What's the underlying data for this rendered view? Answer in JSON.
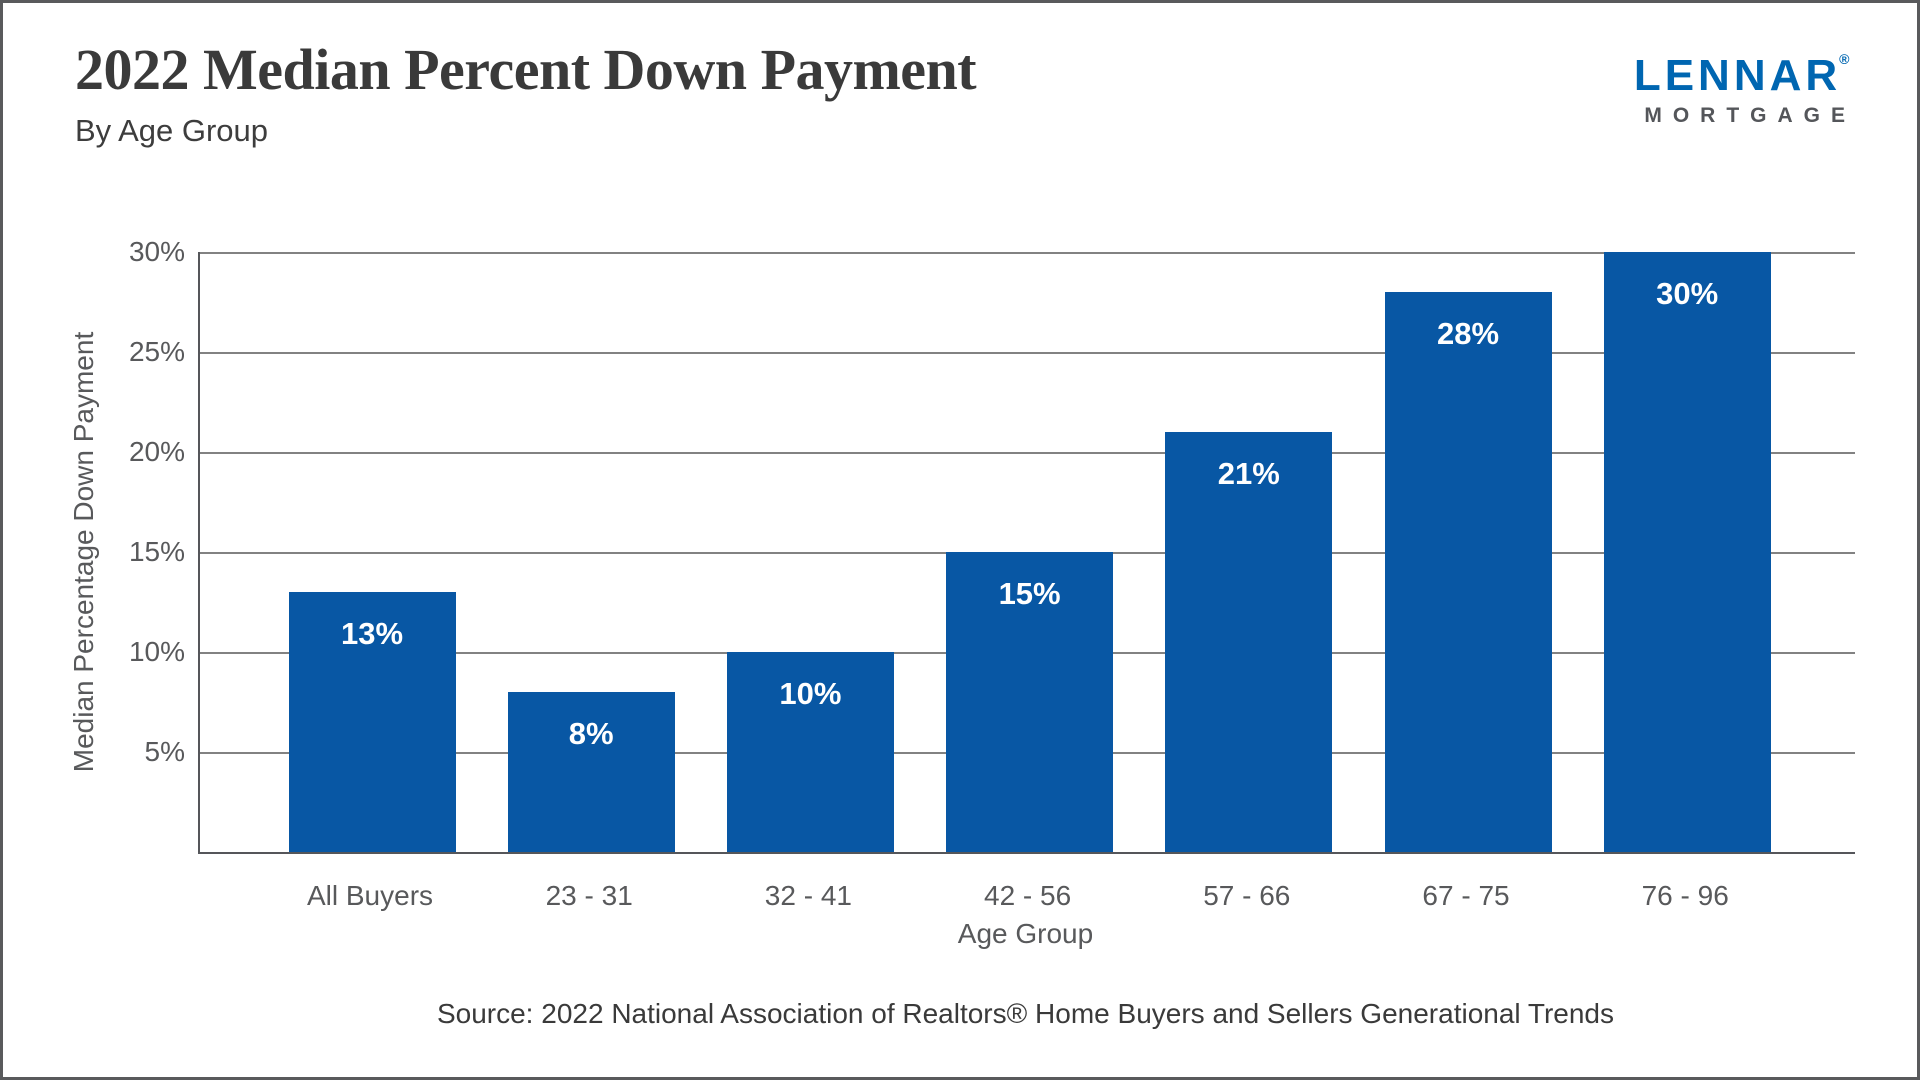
{
  "header": {
    "title": "2022 Median Percent Down Payment",
    "subtitle": "By Age Group"
  },
  "logo": {
    "brand": "LENNAR",
    "registered": "®",
    "sub_brand": "MORTGAGE",
    "brand_color": "#0066B1",
    "sub_brand_color": "#54565A"
  },
  "chart_data": {
    "type": "bar",
    "title": "2022 Median Percent Down Payment",
    "subtitle": "By Age Group",
    "categories": [
      "All Buyers",
      "23 - 31",
      "32 - 41",
      "42 - 56",
      "57 - 66",
      "67 - 75",
      "76 - 96"
    ],
    "values": [
      13,
      8,
      10,
      15,
      21,
      28,
      30
    ],
    "value_labels": [
      "13%",
      "8%",
      "10%",
      "15%",
      "21%",
      "28%",
      "30%"
    ],
    "xlabel": "Age Group",
    "ylabel": "Median Percentage Down Payment",
    "ylim": [
      0,
      30
    ],
    "yticks": [
      5,
      10,
      15,
      20,
      25,
      30
    ],
    "ytick_labels": [
      "5%",
      "10%",
      "15%",
      "20%",
      "25%",
      "30%"
    ],
    "grid": true,
    "legend": false,
    "bar_color": "#0857A4",
    "bar_label_color": "#FFFFFF",
    "axis_color": "#55565A",
    "grid_color": "#828282",
    "tick_text_color": "#58595B"
  },
  "footer": {
    "source": "Source: 2022 National Association of Realtors® Home Buyers and Sellers Generational Trends"
  }
}
